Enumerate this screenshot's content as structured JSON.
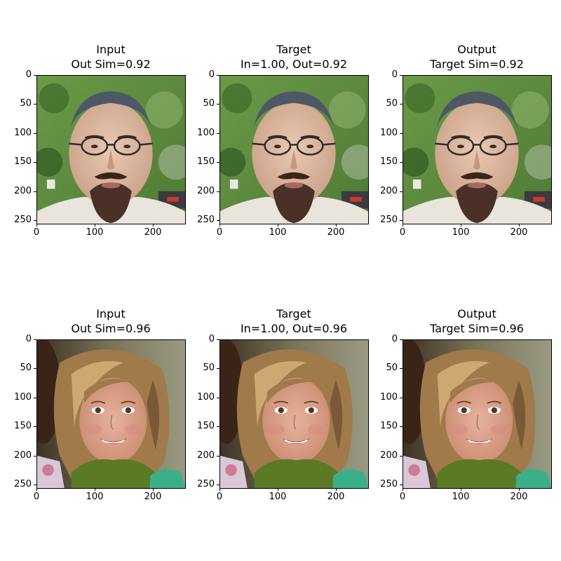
{
  "panels": [
    {
      "title_line1": "Input",
      "title_line2": "Out Sim=0.92",
      "subject": "man",
      "variant": "input"
    },
    {
      "title_line1": "Target",
      "title_line2": "In=1.00, Out=0.92",
      "subject": "man",
      "variant": "target"
    },
    {
      "title_line1": "Output",
      "title_line2": "Target Sim=0.92",
      "subject": "man",
      "variant": "output"
    },
    {
      "title_line1": "Input",
      "title_line2": "Out Sim=0.96",
      "subject": "girl",
      "variant": "input"
    },
    {
      "title_line1": "Target",
      "title_line2": "In=1.00, Out=0.96",
      "subject": "girl",
      "variant": "target"
    },
    {
      "title_line1": "Output",
      "title_line2": "Target Sim=0.96",
      "subject": "girl",
      "variant": "output"
    }
  ],
  "y_ticks": [
    "0",
    "50",
    "100",
    "150",
    "200",
    "250"
  ],
  "x_ticks": [
    "0",
    "100",
    "200"
  ]
}
